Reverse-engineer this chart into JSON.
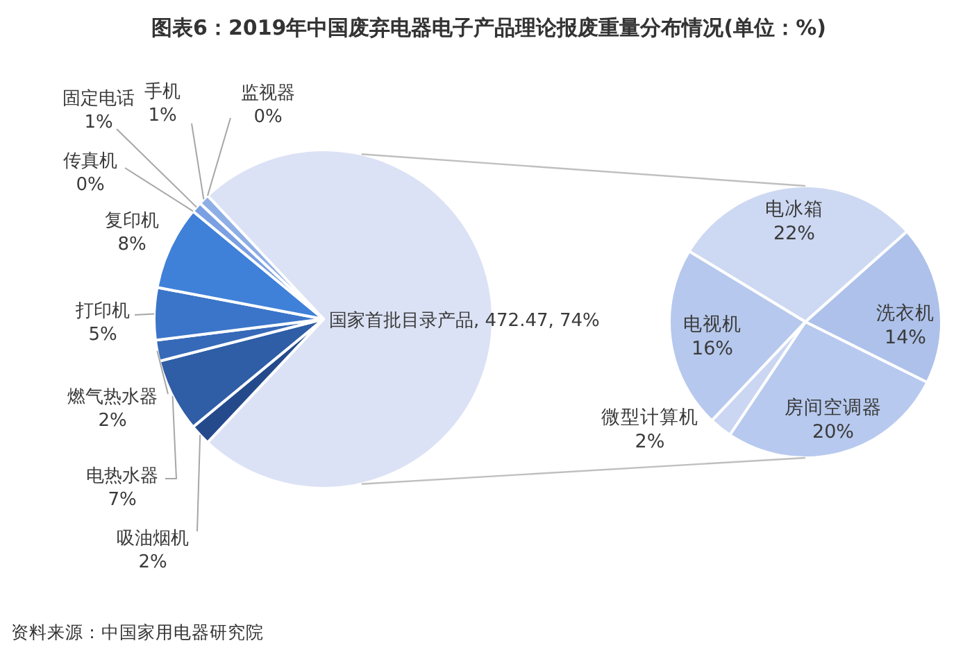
{
  "chart_data": [
    {
      "type": "pie",
      "title": "图表6：2019年中国废弃电器电子产品理论报废重量分布情况(单位：%)",
      "categories": [
        "国家首批目录产品",
        "吸油烟机",
        "电热水器",
        "燃气热水器",
        "打印机",
        "复印机",
        "传真机",
        "固定电话",
        "手机",
        "监视器"
      ],
      "values": [
        74,
        2,
        7,
        2,
        5,
        8,
        0,
        1,
        1,
        0
      ],
      "value_labels": [
        "472.47, 74%",
        "2%",
        "7%",
        "2%",
        "5%",
        "8%",
        "0%",
        "1%",
        "1%",
        "0%"
      ],
      "colors": [
        "#dce2f5",
        "#254a8c",
        "#2f5da6",
        "#3669b8",
        "#3b75c9",
        "#3f80d9",
        null,
        "#7aa0e2",
        "#8eaee6",
        null
      ],
      "annotations": [
        "资料来源：中国家用电器研究院"
      ]
    },
    {
      "type": "pie",
      "categories": [
        "电冰箱",
        "洗衣机",
        "房间空调器",
        "微型计算机",
        "电视机"
      ],
      "values": [
        22,
        14,
        20,
        2,
        16
      ],
      "value_labels": [
        "22%",
        "14%",
        "20%",
        "2%",
        "16%"
      ],
      "colors": [
        "#cdd8f2",
        "#adc1ea",
        "#b7c9ee",
        "#cad6f2",
        "#b6c8ed"
      ]
    }
  ]
}
